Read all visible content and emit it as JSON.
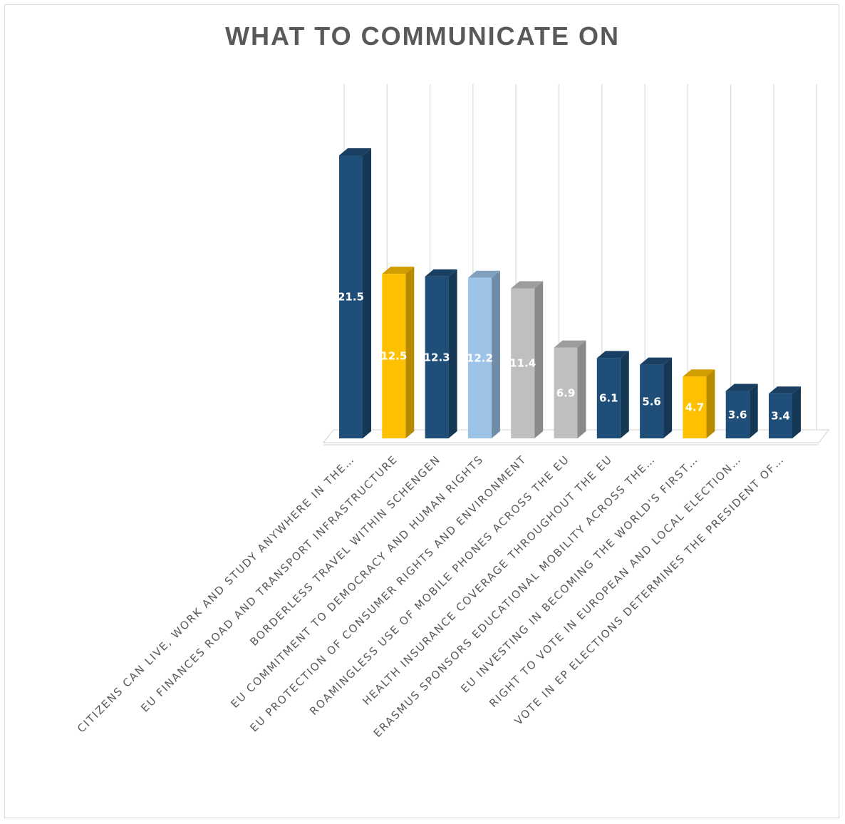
{
  "chart_data": {
    "type": "bar",
    "title": "WHAT TO COMMUNICATE ON",
    "xlabel": "",
    "ylabel": "",
    "ylim": [
      0,
      25
    ],
    "grid": "vertical gridlines",
    "legend": "none",
    "categories": [
      "CITIZENS CAN LIVE, WORK AND STUDY ANYWHERE IN THE…",
      "EU FINANCES ROAD AND TRANSPORT INFRASTRUCTURE",
      "BORDERLESS TRAVEL WITHIN SCHENGEN",
      "EU COMMITMENT TO DEMOCRACY AND HUMAN RIGHTS",
      "EU PROTECTION OF CONSUMER RIGHTS AND ENVIRONMENT",
      "ROAMINGLESS USE OF MOBILE PHONES ACROSS THE EU",
      "HEALTH INSURANCE COVERAGE THROUGHOUT THE EU",
      "ERASMUS SPONSORS EDUCATIONAL MOBILITY ACROSS THE…",
      "EU INVESTING IN BECOMING THE WORLD'S FIRST…",
      "RIGHT TO VOTE IN EUROPEAN AND LOCAL ELECTION…",
      "VOTE IN EP ELECTIONS DETERMINES THE PRESIDENT OF…"
    ],
    "values": [
      21.5,
      12.5,
      12.3,
      12.2,
      11.4,
      6.9,
      6.1,
      5.6,
      4.7,
      3.6,
      3.4
    ],
    "value_labels": [
      "21.5",
      "12.5",
      "12.3",
      "12.2",
      "11.4",
      "6.9",
      "6.1",
      "5.6",
      "4.7",
      "3.6",
      "3.4"
    ],
    "bar_colors": [
      "#1f4e79",
      "#ffc000",
      "#1f4e79",
      "#9dc3e6",
      "#bfbfbf",
      "#bfbfbf",
      "#1f4e79",
      "#1f4e79",
      "#ffc000",
      "#1f4e79",
      "#1f4e79"
    ],
    "colors": {
      "navy": "#1f4e79",
      "gold": "#ffc000",
      "light_blue": "#9dc3e6",
      "gray": "#bfbfbf",
      "title": "#595959",
      "gridline": "#d9d9d9"
    }
  }
}
